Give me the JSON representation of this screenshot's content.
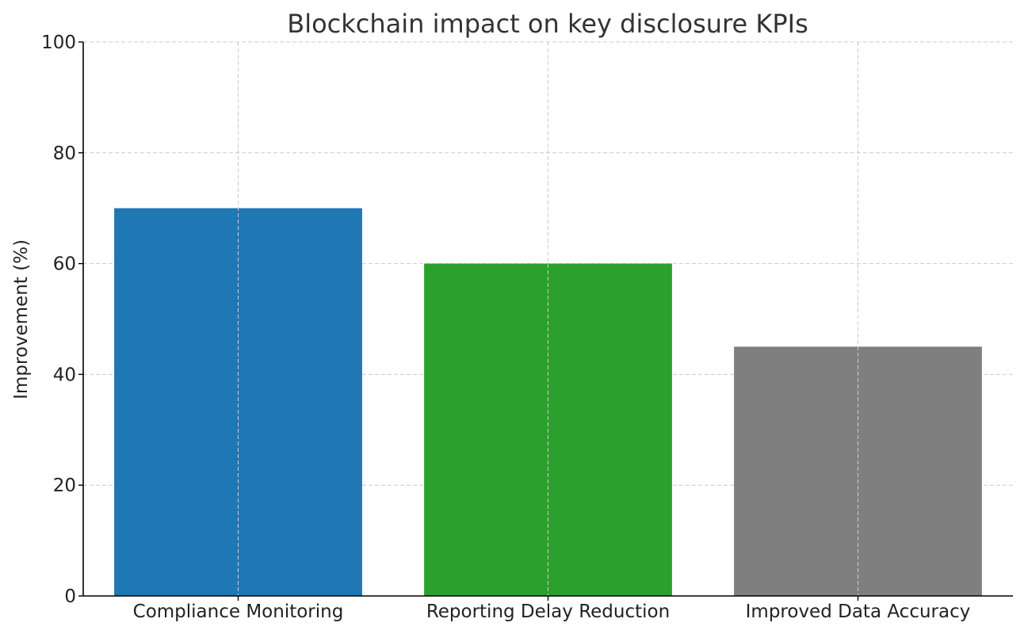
{
  "chart_data": {
    "type": "bar",
    "title": "Blockchain impact on key disclosure KPIs",
    "xlabel": "",
    "ylabel": "Improvement (%)",
    "categories": [
      "Compliance Monitoring",
      "Reporting Delay Reduction",
      "Improved Data Accuracy"
    ],
    "values": [
      70,
      60,
      45
    ],
    "colors": [
      "#1f77b4",
      "#2ca02c",
      "#7f7f7f"
    ],
    "ylim": [
      0,
      100
    ],
    "yticks": [
      0,
      20,
      40,
      60,
      80,
      100
    ],
    "grid": true
  }
}
